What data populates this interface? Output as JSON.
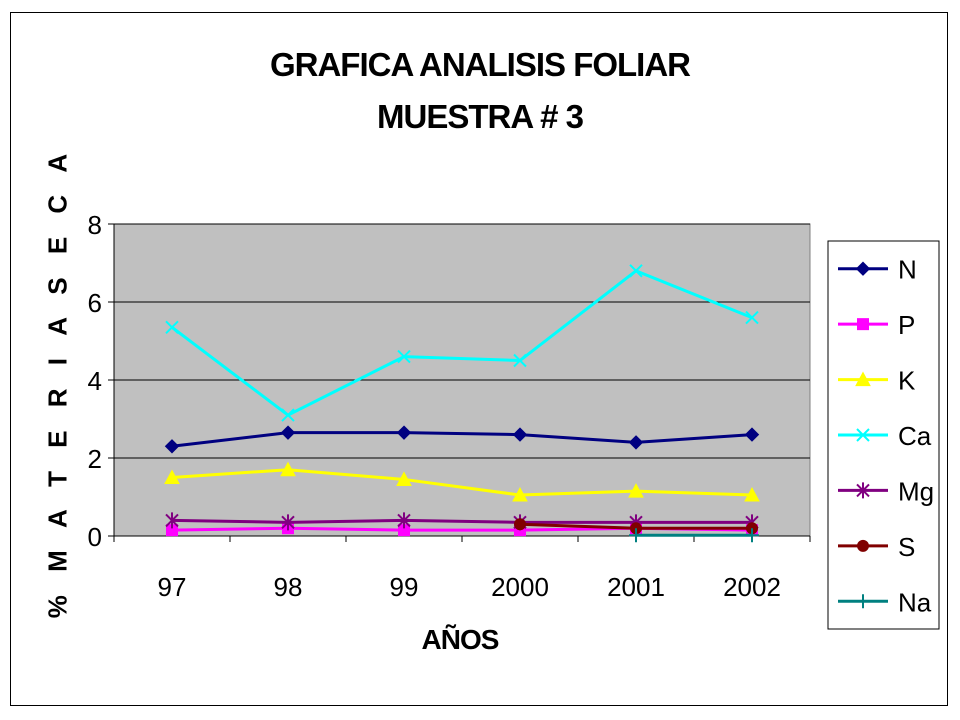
{
  "chart_data": {
    "type": "line",
    "title": "GRAFICA ANALISIS FOLIAR",
    "subtitle": "MUESTRA # 3",
    "xlabel": "AÑOS",
    "ylabel": "% M A T E R I A  S E C A",
    "categories": [
      "97",
      "98",
      "99",
      "2000",
      "2001",
      "2002"
    ],
    "ylim": [
      0,
      8
    ],
    "yticks": [
      "0",
      "2",
      "4",
      "6",
      "8"
    ],
    "grid": true,
    "legend_position": "right",
    "series": [
      {
        "name": "N",
        "color": "#000080",
        "marker": "diamond",
        "values": [
          2.3,
          2.65,
          2.65,
          2.6,
          2.4,
          2.6
        ]
      },
      {
        "name": "P",
        "color": "#ff00ff",
        "marker": "square",
        "values": [
          0.15,
          0.2,
          0.15,
          0.15,
          0.2,
          0.15
        ]
      },
      {
        "name": "K",
        "color": "#ffff00",
        "marker": "triangle",
        "values": [
          1.5,
          1.7,
          1.45,
          1.05,
          1.15,
          1.05
        ]
      },
      {
        "name": "Ca",
        "color": "#00ffff",
        "marker": "x",
        "values": [
          5.35,
          3.1,
          4.6,
          4.5,
          6.8,
          5.6
        ]
      },
      {
        "name": "Mg",
        "color": "#800080",
        "marker": "star",
        "values": [
          0.4,
          0.35,
          0.4,
          0.35,
          0.35,
          0.35
        ]
      },
      {
        "name": "S",
        "color": "#800000",
        "marker": "circle",
        "values": [
          null,
          null,
          null,
          0.3,
          0.2,
          0.2
        ]
      },
      {
        "name": "Na",
        "color": "#008080",
        "marker": "plus",
        "values": [
          null,
          null,
          null,
          null,
          0.02,
          0.02
        ]
      }
    ]
  }
}
